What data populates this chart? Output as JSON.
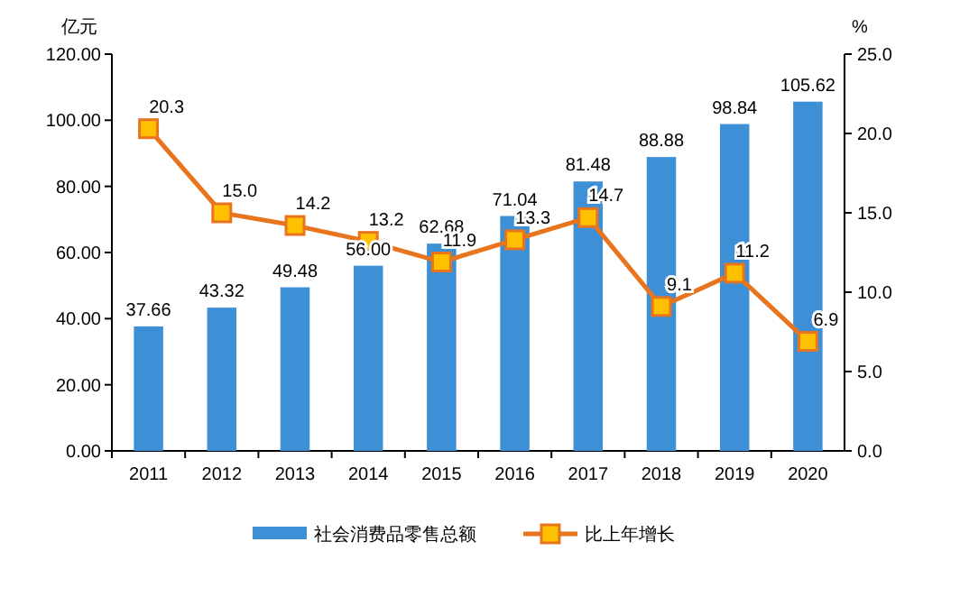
{
  "chart_data": {
    "type": "bar",
    "categories": [
      "2011",
      "2012",
      "2013",
      "2014",
      "2015",
      "2016",
      "2017",
      "2018",
      "2019",
      "2020"
    ],
    "ylabel": "亿元",
    "y2label": "%",
    "ylim": [
      0,
      120
    ],
    "yticks": [
      {
        "value": 0,
        "label": "0.00"
      },
      {
        "value": 20,
        "label": "20.00"
      },
      {
        "value": 40,
        "label": "40.00"
      },
      {
        "value": 60,
        "label": "60.00"
      },
      {
        "value": 80,
        "label": "80.00"
      },
      {
        "value": 100,
        "label": "100.00"
      },
      {
        "value": 120,
        "label": "120.00"
      }
    ],
    "y2lim": [
      0,
      25
    ],
    "y2ticks": [
      {
        "value": 0,
        "label": "0.0"
      },
      {
        "value": 5,
        "label": "5.0"
      },
      {
        "value": 10,
        "label": "10.0"
      },
      {
        "value": 15,
        "label": "15.0"
      },
      {
        "value": 20,
        "label": "20.0"
      },
      {
        "value": 25,
        "label": "25.0"
      }
    ],
    "legend": "bottom",
    "grid": false,
    "series": [
      {
        "name": "社会消费品零售总额",
        "color": "#3d8fd6",
        "values": [
          37.66,
          43.32,
          49.48,
          56.0,
          62.68,
          71.04,
          81.48,
          88.88,
          98.84,
          105.62
        ],
        "value_labels": [
          "37.66",
          "43.32",
          "49.48",
          "56.00",
          "62.68",
          "71.04",
          "81.48",
          "88.88",
          "98.84",
          "105.62"
        ]
      },
      {
        "name": "比上年增长",
        "type": "line",
        "axis": "y2",
        "color": "#e8741e",
        "marker": "square",
        "values": [
          20.3,
          15.0,
          14.2,
          13.2,
          11.9,
          13.3,
          14.7,
          9.1,
          11.2,
          6.9
        ],
        "value_labels": [
          "20.3",
          "15.0",
          "14.2",
          "13.2",
          "11.9",
          "13.3",
          "14.7",
          "9.1",
          "11.2",
          "6.9"
        ]
      }
    ]
  }
}
